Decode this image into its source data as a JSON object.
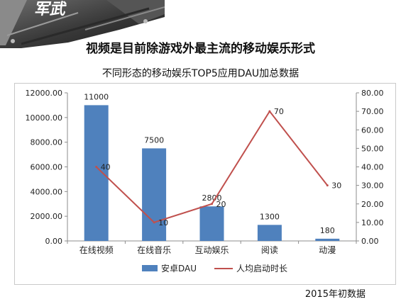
{
  "page": {
    "banner_text": "军武",
    "title": "视频是目前除游戏外最主流的移动娱乐形式",
    "footnote": "2015年初数据"
  },
  "chart_data": {
    "type": "bar+line",
    "title": "不同形态的移动娱乐TOP5应用DAU加总数据",
    "categories": [
      "在线视频",
      "在线音乐",
      "互动娱乐",
      "阅读",
      "动漫"
    ],
    "series": [
      {
        "name": "安卓DAU",
        "type": "bar",
        "axis": "left",
        "values": [
          11000,
          7500,
          2800,
          1300,
          180
        ],
        "labels": [
          "11000",
          "7500",
          "2800",
          "1300",
          "180"
        ],
        "color": "#4f81bd"
      },
      {
        "name": "人均启动时长",
        "type": "line",
        "axis": "right",
        "values": [
          40,
          10,
          20,
          70,
          30
        ],
        "labels": [
          "40",
          "10",
          "20",
          "70",
          "30"
        ],
        "color": "#c0504d"
      }
    ],
    "y_left": {
      "min": 0,
      "max": 12000,
      "ticks": [
        "0.00",
        "2000.00",
        "4000.00",
        "6000.00",
        "8000.00",
        "10000.00",
        "12000.00"
      ]
    },
    "y_right": {
      "min": 0,
      "max": 80,
      "ticks": [
        "0.00",
        "10.00",
        "20.00",
        "30.00",
        "40.00",
        "50.00",
        "60.00",
        "70.00",
        "80.00"
      ]
    },
    "legend_position": "bottom",
    "grid": false
  }
}
